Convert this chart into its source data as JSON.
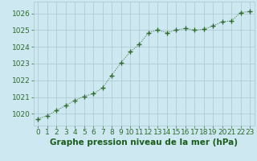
{
  "x": [
    0,
    1,
    2,
    3,
    4,
    5,
    6,
    7,
    8,
    9,
    10,
    11,
    12,
    13,
    14,
    15,
    16,
    17,
    18,
    19,
    20,
    21,
    22,
    23
  ],
  "y": [
    1019.7,
    1019.9,
    1020.2,
    1020.5,
    1020.8,
    1021.05,
    1021.2,
    1021.55,
    1022.3,
    1023.05,
    1023.7,
    1024.15,
    1024.85,
    1025.0,
    1024.85,
    1025.0,
    1025.1,
    1025.0,
    1025.05,
    1025.25,
    1025.5,
    1025.55,
    1026.05,
    1026.1
  ],
  "line_color": "#2d6a2d",
  "marker": "+",
  "marker_color": "#2d6a2d",
  "bg_color": "#cde8f0",
  "grid_color": "#a8c8cc",
  "title": "Graphe pression niveau de la mer (hPa)",
  "title_color": "#1a5c1a",
  "tick_fontsize": 6.5,
  "title_fontsize": 7.5,
  "ytick_min": 1020,
  "ytick_max": 1026,
  "ytick_step": 1,
  "xtick_labels": [
    "0",
    "1",
    "2",
    "3",
    "4",
    "5",
    "6",
    "7",
    "8",
    "9",
    "10",
    "11",
    "12",
    "13",
    "14",
    "15",
    "16",
    "17",
    "18",
    "19",
    "20",
    "21",
    "22",
    "23"
  ],
  "ylim": [
    1019.3,
    1026.7
  ],
  "xlim": [
    -0.5,
    23.5
  ]
}
